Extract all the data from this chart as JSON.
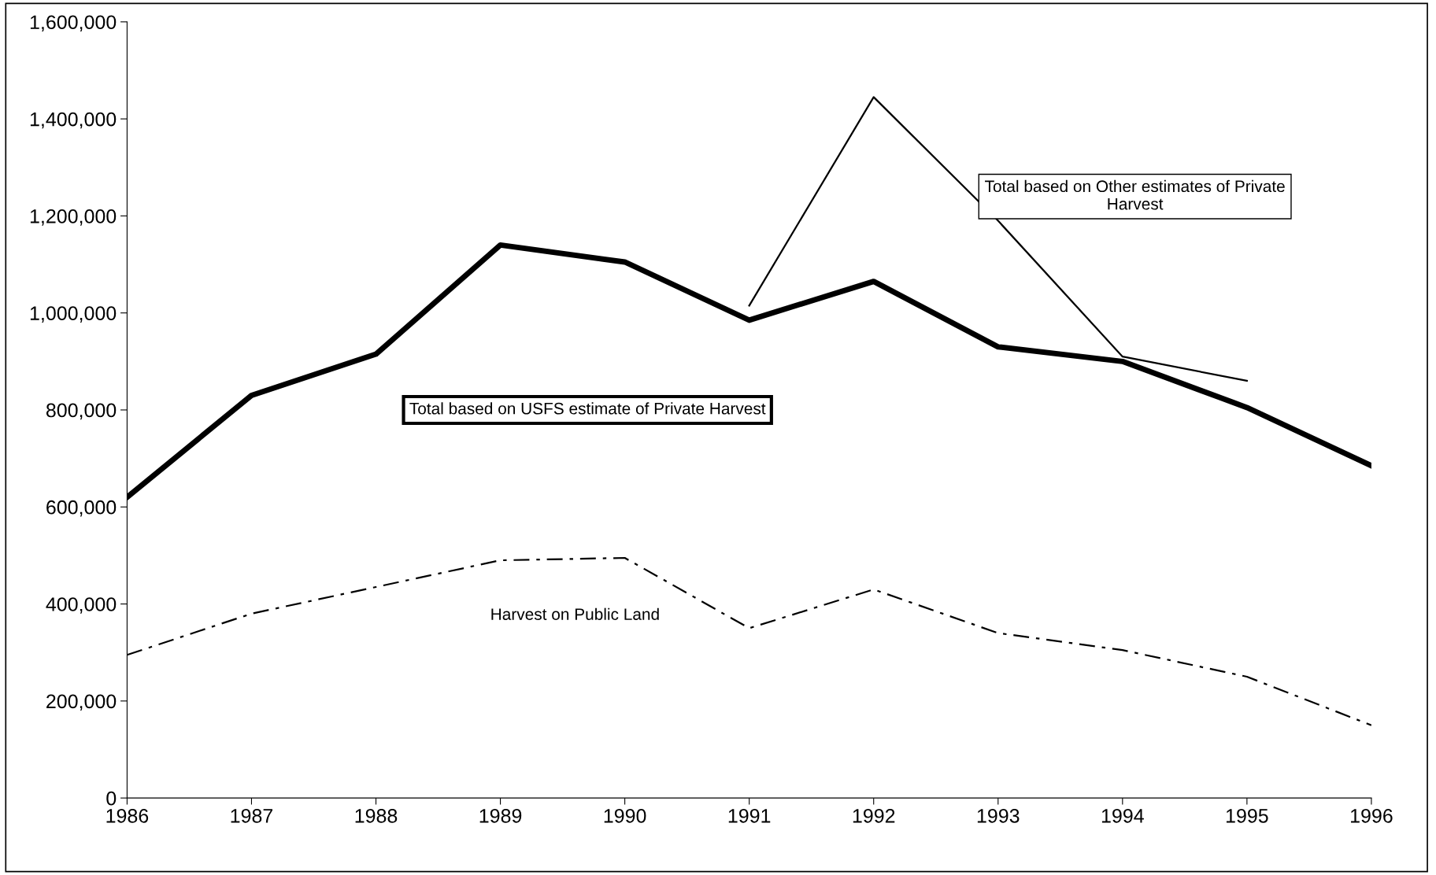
{
  "chart_data": {
    "type": "line",
    "x": [
      1986,
      1987,
      1988,
      1989,
      1990,
      1991,
      1992,
      1993,
      1994,
      1995,
      1996
    ],
    "series": [
      {
        "name": "Total based on USFS estimate of Private Harvest",
        "color": "#000000",
        "line_style": "solid",
        "values": [
          620000,
          830000,
          915000,
          1140000,
          1105000,
          985000,
          1065000,
          930000,
          900000,
          805000,
          685000
        ]
      },
      {
        "name": "Total based on Other estimates of Private Harvest",
        "color": "#000000",
        "line_style": "solid",
        "values": [
          null,
          null,
          null,
          null,
          null,
          1015000,
          1445000,
          1190000,
          910000,
          860000,
          null
        ]
      },
      {
        "name": "Harvest on Public Land",
        "color": "#000000",
        "line_style": "dashed",
        "values": [
          295000,
          380000,
          435000,
          490000,
          495000,
          350000,
          430000,
          340000,
          305000,
          250000,
          150000
        ]
      }
    ],
    "xlim": [
      1986,
      1996
    ],
    "xticks": [
      1986,
      1987,
      1988,
      1989,
      1990,
      1991,
      1992,
      1993,
      1994,
      1995,
      1996
    ],
    "ylim": [
      0,
      1600000
    ],
    "yticks": [
      0,
      {
        "value": 200000,
        "label": "200,000"
      },
      {
        "value": 400000,
        "label": "400,000"
      },
      {
        "value": 600000,
        "label": "600,000"
      },
      {
        "value": 800000,
        "label": "800,000"
      },
      {
        "value": 1000000,
        "label": "1,000,000"
      },
      {
        "value": 1200000,
        "label": "1,200,000"
      },
      {
        "value": 1400000,
        "label": "1,400,000"
      },
      {
        "value": 1600000,
        "label": "1,600,000"
      }
    ],
    "grid": false,
    "legend": false,
    "marker": "none"
  }
}
